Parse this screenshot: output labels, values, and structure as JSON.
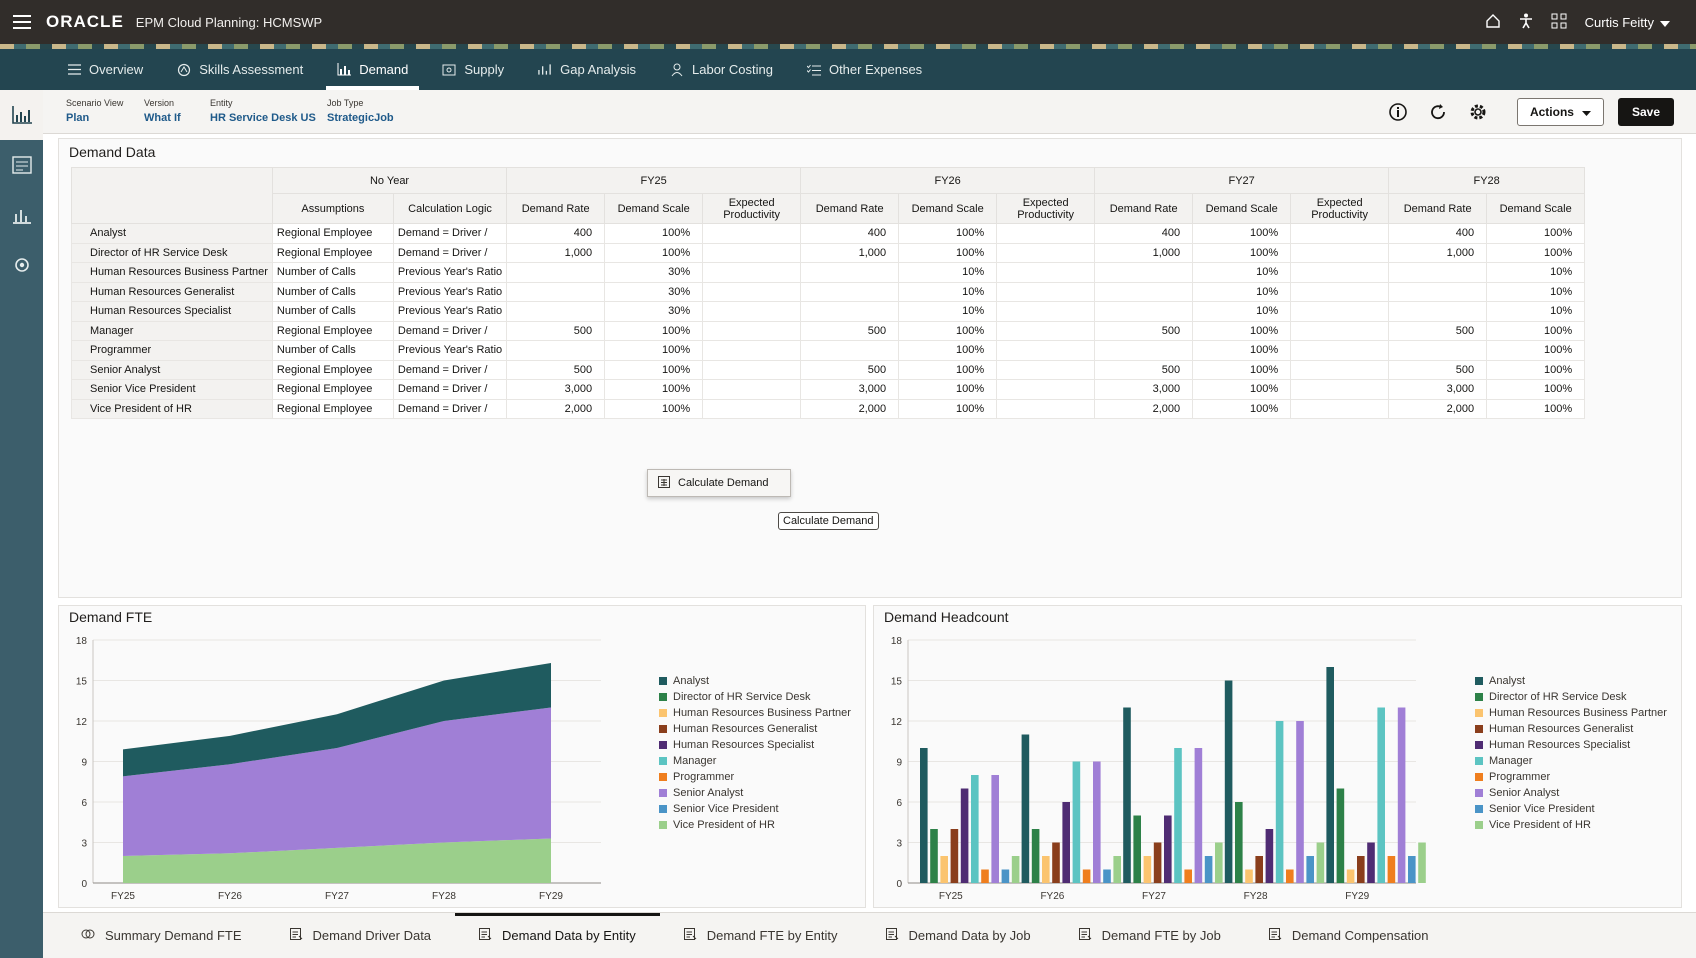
{
  "topbar": {
    "brand": "ORACLE",
    "app_title": "EPM Cloud Planning: HCMSWP",
    "user_name": "Curtis Feitty",
    "icons": [
      "hamburger-icon",
      "home-icon",
      "accessibility-icon",
      "apps-grid-icon",
      "chevron-down-icon"
    ]
  },
  "nav": {
    "tabs": [
      {
        "label": "Overview",
        "icon": "list-icon"
      },
      {
        "label": "Skills Assessment",
        "icon": "skills-icon"
      },
      {
        "label": "Demand",
        "icon": "chart-icon",
        "active": true
      },
      {
        "label": "Supply",
        "icon": "supply-icon"
      },
      {
        "label": "Gap Analysis",
        "icon": "gap-icon"
      },
      {
        "label": "Labor Costing",
        "icon": "costing-icon"
      },
      {
        "label": "Other Expenses",
        "icon": "checklist-icon"
      }
    ]
  },
  "pov": {
    "scenario_label": "Scenario View",
    "scenario_value": "Plan",
    "version_label": "Version",
    "version_value": "What If",
    "entity_label": "Entity",
    "entity_value": "HR Service Desk US",
    "jobtype_label": "Job Type",
    "jobtype_value": "StrategicJob"
  },
  "toolbar": {
    "actions_label": "Actions",
    "save_label": "Save"
  },
  "demand_data": {
    "title": "Demand Data",
    "header_groups": [
      "No Year",
      "FY25",
      "FY26",
      "FY27",
      "FY28"
    ],
    "col_headers": {
      "assumptions": "Assumptions",
      "calc_logic": "Calculation Logic",
      "demand_rate": "Demand Rate",
      "demand_scale": "Demand Scale",
      "expected_productivity": "Expected Productivity"
    },
    "rows": [
      {
        "name": "Analyst",
        "assumption": "Regional Employee",
        "logic": "Demand = Driver /",
        "rate": "400",
        "scale": "100%",
        "rate28": "400",
        "scale28": "100%"
      },
      {
        "name": "Director of HR Service Desk",
        "assumption": "Regional Employee",
        "logic": "Demand = Driver /",
        "rate": "1,000",
        "scale": "100%",
        "rate28": "1,000",
        "scale28": "100%"
      },
      {
        "name": "Human Resources Business Partner",
        "assumption": "Number of Calls",
        "logic": "Previous Year's Ratio",
        "rate": "",
        "scale": "30%",
        "scale26": "10%",
        "rate28": "",
        "scale28": "10%"
      },
      {
        "name": "Human Resources Generalist",
        "assumption": "Number of Calls",
        "logic": "Previous Year's Ratio",
        "rate": "",
        "scale": "30%",
        "scale26": "10%",
        "rate28": "",
        "scale28": "10%"
      },
      {
        "name": "Human Resources Specialist",
        "assumption": "Number of Calls",
        "logic": "Previous Year's Ratio",
        "rate": "",
        "scale": "30%",
        "scale26": "10%",
        "rate28": "",
        "scale28": "10%"
      },
      {
        "name": "Manager",
        "assumption": "Regional Employee",
        "logic": "Demand = Driver /",
        "rate": "500",
        "scale": "100%",
        "rate28": "500",
        "scale28": "100%"
      },
      {
        "name": "Programmer",
        "assumption": "Number of Calls",
        "logic": "Previous Year's Ratio",
        "rate": "",
        "scale": "100%",
        "rate28": "",
        "scale28": "100%"
      },
      {
        "name": "Senior Analyst",
        "assumption": "Regional Employee",
        "logic": "Demand = Driver /",
        "rate": "500",
        "scale": "100%",
        "rate28": "500",
        "scale28": "100%"
      },
      {
        "name": "Senior Vice President",
        "assumption": "Regional Employee",
        "logic": "Demand = Driver /",
        "rate": "3,000",
        "scale": "100%",
        "rate28": "3,000",
        "scale28": "100%"
      },
      {
        "name": "Vice President of HR",
        "assumption": "Regional Employee",
        "logic": "Demand = Driver /",
        "rate": "2,000",
        "scale": "100%",
        "rate28": "2,000",
        "scale28": "100%"
      }
    ],
    "calc_menu_label": "Calculate Demand",
    "calc_tooltip": "Calculate Demand"
  },
  "colors": {
    "Analyst": "#1f5b5f",
    "Director of HR Service Desk": "#2d8148",
    "Human Resources Business Partner": "#fbc46f",
    "Human Resources Generalist": "#8a3e1c",
    "Human Resources Specialist": "#4f2c73",
    "Manager": "#5cc4c2",
    "Programmer": "#ef7e1e",
    "Senior Analyst": "#a07fd6",
    "Senior Vice President": "#4a94c7",
    "Vice President of HR": "#9bcf8b"
  },
  "chart_data": [
    {
      "type": "area",
      "title": "Demand FTE",
      "categories": [
        "FY25",
        "FY26",
        "FY27",
        "FY28",
        "FY29"
      ],
      "ylim": [
        0,
        18
      ],
      "yticks": [
        "0",
        "3",
        "6",
        "9",
        "12",
        "15",
        "18"
      ],
      "stacked": true,
      "series": [
        {
          "name": "Vice President of HR",
          "values": [
            2,
            2.2,
            2.6,
            3,
            3.3
          ]
        },
        {
          "name": "Senior Analyst",
          "values": [
            5.9,
            6.6,
            7.4,
            9,
            9.7
          ]
        },
        {
          "name": "Analyst",
          "values": [
            2,
            2.1,
            2.5,
            3,
            3.3
          ]
        }
      ],
      "legend": [
        "Analyst",
        "Director of HR Service Desk",
        "Human Resources Business Partner",
        "Human Resources Generalist",
        "Human Resources Specialist",
        "Manager",
        "Programmer",
        "Senior Analyst",
        "Senior Vice President",
        "Vice President of HR"
      ],
      "legend_position": "right"
    },
    {
      "type": "bar",
      "title": "Demand Headcount",
      "categories": [
        "FY25",
        "FY26",
        "FY27",
        "FY28",
        "FY29"
      ],
      "ylim": [
        0,
        18
      ],
      "yticks": [
        "0",
        "3",
        "6",
        "9",
        "12",
        "15",
        "18"
      ],
      "series": [
        {
          "name": "Analyst",
          "values": [
            10,
            11,
            13,
            15,
            16
          ]
        },
        {
          "name": "Director of HR Service Desk",
          "values": [
            4,
            4,
            5,
            6,
            7
          ]
        },
        {
          "name": "Human Resources Business Partner",
          "values": [
            2,
            2,
            2,
            1,
            1
          ]
        },
        {
          "name": "Human Resources Generalist",
          "values": [
            4,
            3,
            3,
            2,
            2
          ]
        },
        {
          "name": "Human Resources Specialist",
          "values": [
            7,
            6,
            5,
            4,
            3
          ]
        },
        {
          "name": "Manager",
          "values": [
            8,
            9,
            10,
            12,
            13
          ]
        },
        {
          "name": "Programmer",
          "values": [
            1,
            1,
            1,
            1,
            2
          ]
        },
        {
          "name": "Senior Analyst",
          "values": [
            8,
            9,
            10,
            12,
            13
          ]
        },
        {
          "name": "Senior Vice President",
          "values": [
            1,
            1,
            2,
            2,
            2
          ]
        },
        {
          "name": "Vice President of HR",
          "values": [
            2,
            2,
            3,
            3,
            3
          ]
        }
      ],
      "legend": [
        "Analyst",
        "Director of HR Service Desk",
        "Human Resources Business Partner",
        "Human Resources Generalist",
        "Human Resources Specialist",
        "Manager",
        "Programmer",
        "Senior Analyst",
        "Senior Vice President",
        "Vice President of HR"
      ],
      "legend_position": "right"
    }
  ],
  "bottom_tabs": [
    {
      "label": "Summary Demand FTE",
      "icon": "summary-icon"
    },
    {
      "label": "Demand Driver Data",
      "icon": "form-icon"
    },
    {
      "label": "Demand Data by Entity",
      "icon": "form-icon",
      "active": true
    },
    {
      "label": "Demand FTE by Entity",
      "icon": "form-icon"
    },
    {
      "label": "Demand Data by Job",
      "icon": "form-icon"
    },
    {
      "label": "Demand FTE by Job",
      "icon": "form-icon"
    },
    {
      "label": "Demand Compensation",
      "icon": "form-icon"
    }
  ]
}
